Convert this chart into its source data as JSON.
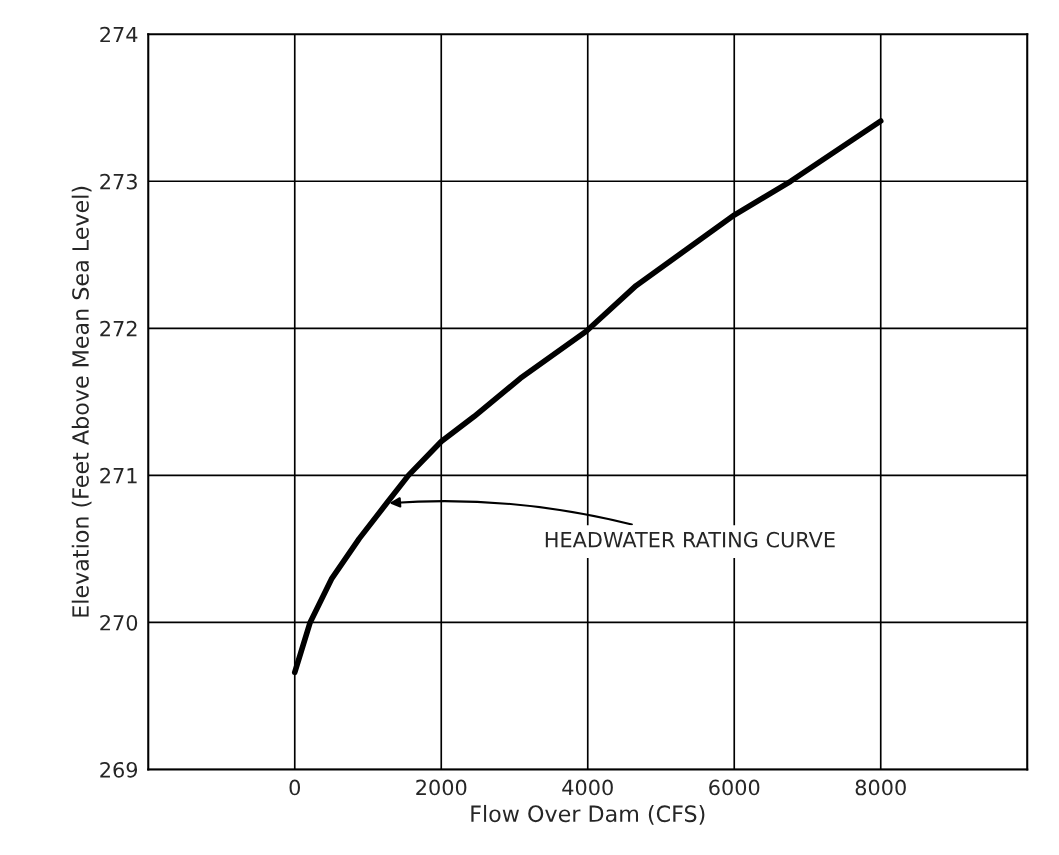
{
  "chart_data": {
    "type": "line",
    "xlabel": "Flow Over Dam (CFS)",
    "ylabel": "Elevation (Feet Above Mean Sea Level)",
    "series": [
      {
        "color": "#000000",
        "x": [
          0,
          210,
          507,
          880,
          1254,
          1552,
          2000,
          2448,
          3080,
          3980,
          4660,
          6000,
          6770,
          8000
        ],
        "values": [
          269.66,
          270.0,
          270.3,
          270.57,
          270.81,
          271.0,
          271.23,
          271.4,
          271.66,
          271.98,
          272.29,
          272.77,
          273.0,
          273.41
        ]
      }
    ],
    "xlim": [
      -2000,
      10000
    ],
    "xticks": [
      0,
      2000,
      4000,
      6000,
      8000
    ],
    "ylim": [
      269,
      274
    ],
    "yticks": [
      269,
      270,
      271,
      272,
      273,
      274
    ],
    "grid": true,
    "marker": "none",
    "line_style": "solid",
    "annotations": [
      {
        "text": "HEADWATER RATING CURVE",
        "x": 1254,
        "y": 270.81
      }
    ]
  }
}
